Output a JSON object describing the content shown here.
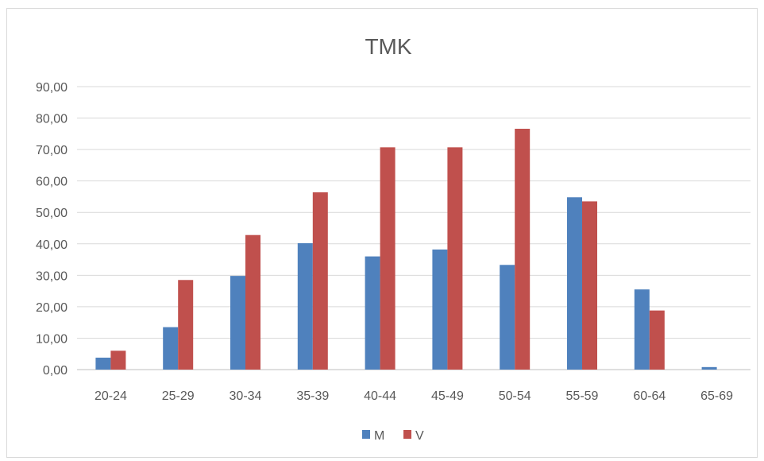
{
  "chart_data": {
    "type": "bar",
    "title": "TMK",
    "categories": [
      "20-24",
      "25-29",
      "30-34",
      "35-39",
      "40-44",
      "45-49",
      "50-54",
      "55-59",
      "60-64",
      "65-69"
    ],
    "series": [
      {
        "name": "M",
        "color": "#4f81bd",
        "values": [
          3.8,
          13.5,
          29.8,
          40.2,
          36.0,
          38.2,
          33.3,
          54.8,
          25.5,
          0.8
        ]
      },
      {
        "name": "V",
        "color": "#c0504d",
        "values": [
          6.0,
          28.5,
          42.8,
          56.4,
          70.7,
          70.7,
          76.6,
          53.5,
          18.8,
          0
        ]
      }
    ],
    "ylim": [
      0,
      90
    ],
    "yticks": [
      "0,00",
      "10,00",
      "20,00",
      "30,00",
      "40,00",
      "50,00",
      "60,00",
      "70,00",
      "80,00",
      "90,00"
    ],
    "grid": true,
    "legend_position": "bottom"
  }
}
